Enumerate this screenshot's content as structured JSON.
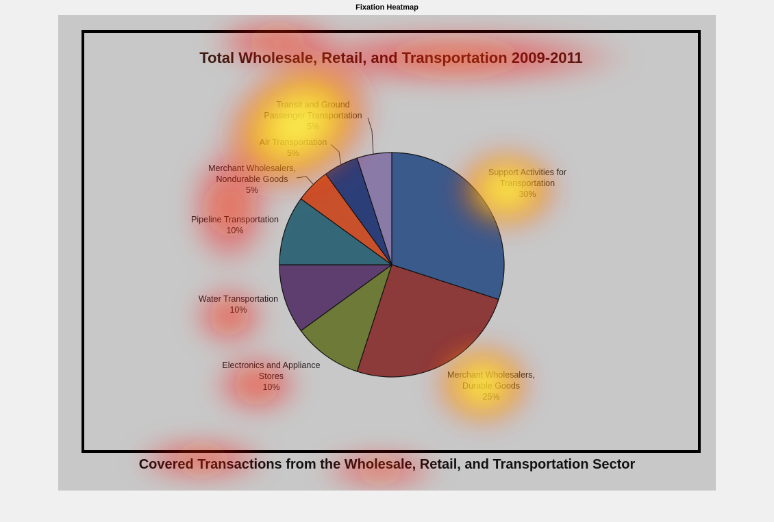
{
  "figure_title": "Fixation Heatmap",
  "chart_data": {
    "type": "pie",
    "title": "Total Wholesale, Retail, and Transportation 2009-2011",
    "subtitle": "Covered Transactions from the Wholesale, Retail, and Transportation Sector",
    "slices": [
      {
        "label_lines": [
          "Support Activities for",
          "Transportation"
        ],
        "pct_label": "30%",
        "value": 30,
        "color": "#3a5a8c"
      },
      {
        "label_lines": [
          "Merchant Wholesalers,",
          "Durable Goods"
        ],
        "pct_label": "25%",
        "value": 25,
        "color": "#8c3a3a"
      },
      {
        "label_lines": [
          "Electronics and Appliance",
          "Stores"
        ],
        "pct_label": "10%",
        "value": 10,
        "color": "#6e7a38"
      },
      {
        "label_lines": [
          "Water Transportation"
        ],
        "pct_label": "10%",
        "value": 10,
        "color": "#5e3e6e"
      },
      {
        "label_lines": [
          "Pipeline Transportation"
        ],
        "pct_label": "10%",
        "value": 10,
        "color": "#346878"
      },
      {
        "label_lines": [
          "Merchant Wholesalers,",
          "Nondurable Goods"
        ],
        "pct_label": "5%",
        "value": 5,
        "color": "#c8502a"
      },
      {
        "label_lines": [
          "Air Transportation"
        ],
        "pct_label": "5%",
        "value": 5,
        "color": "#2c3e78"
      },
      {
        "label_lines": [
          "Transit and Ground",
          "Passenger Transportation"
        ],
        "pct_label": "5%",
        "value": 5,
        "color": "#8a7aa8"
      }
    ],
    "overlay": "fixation heatmap"
  }
}
